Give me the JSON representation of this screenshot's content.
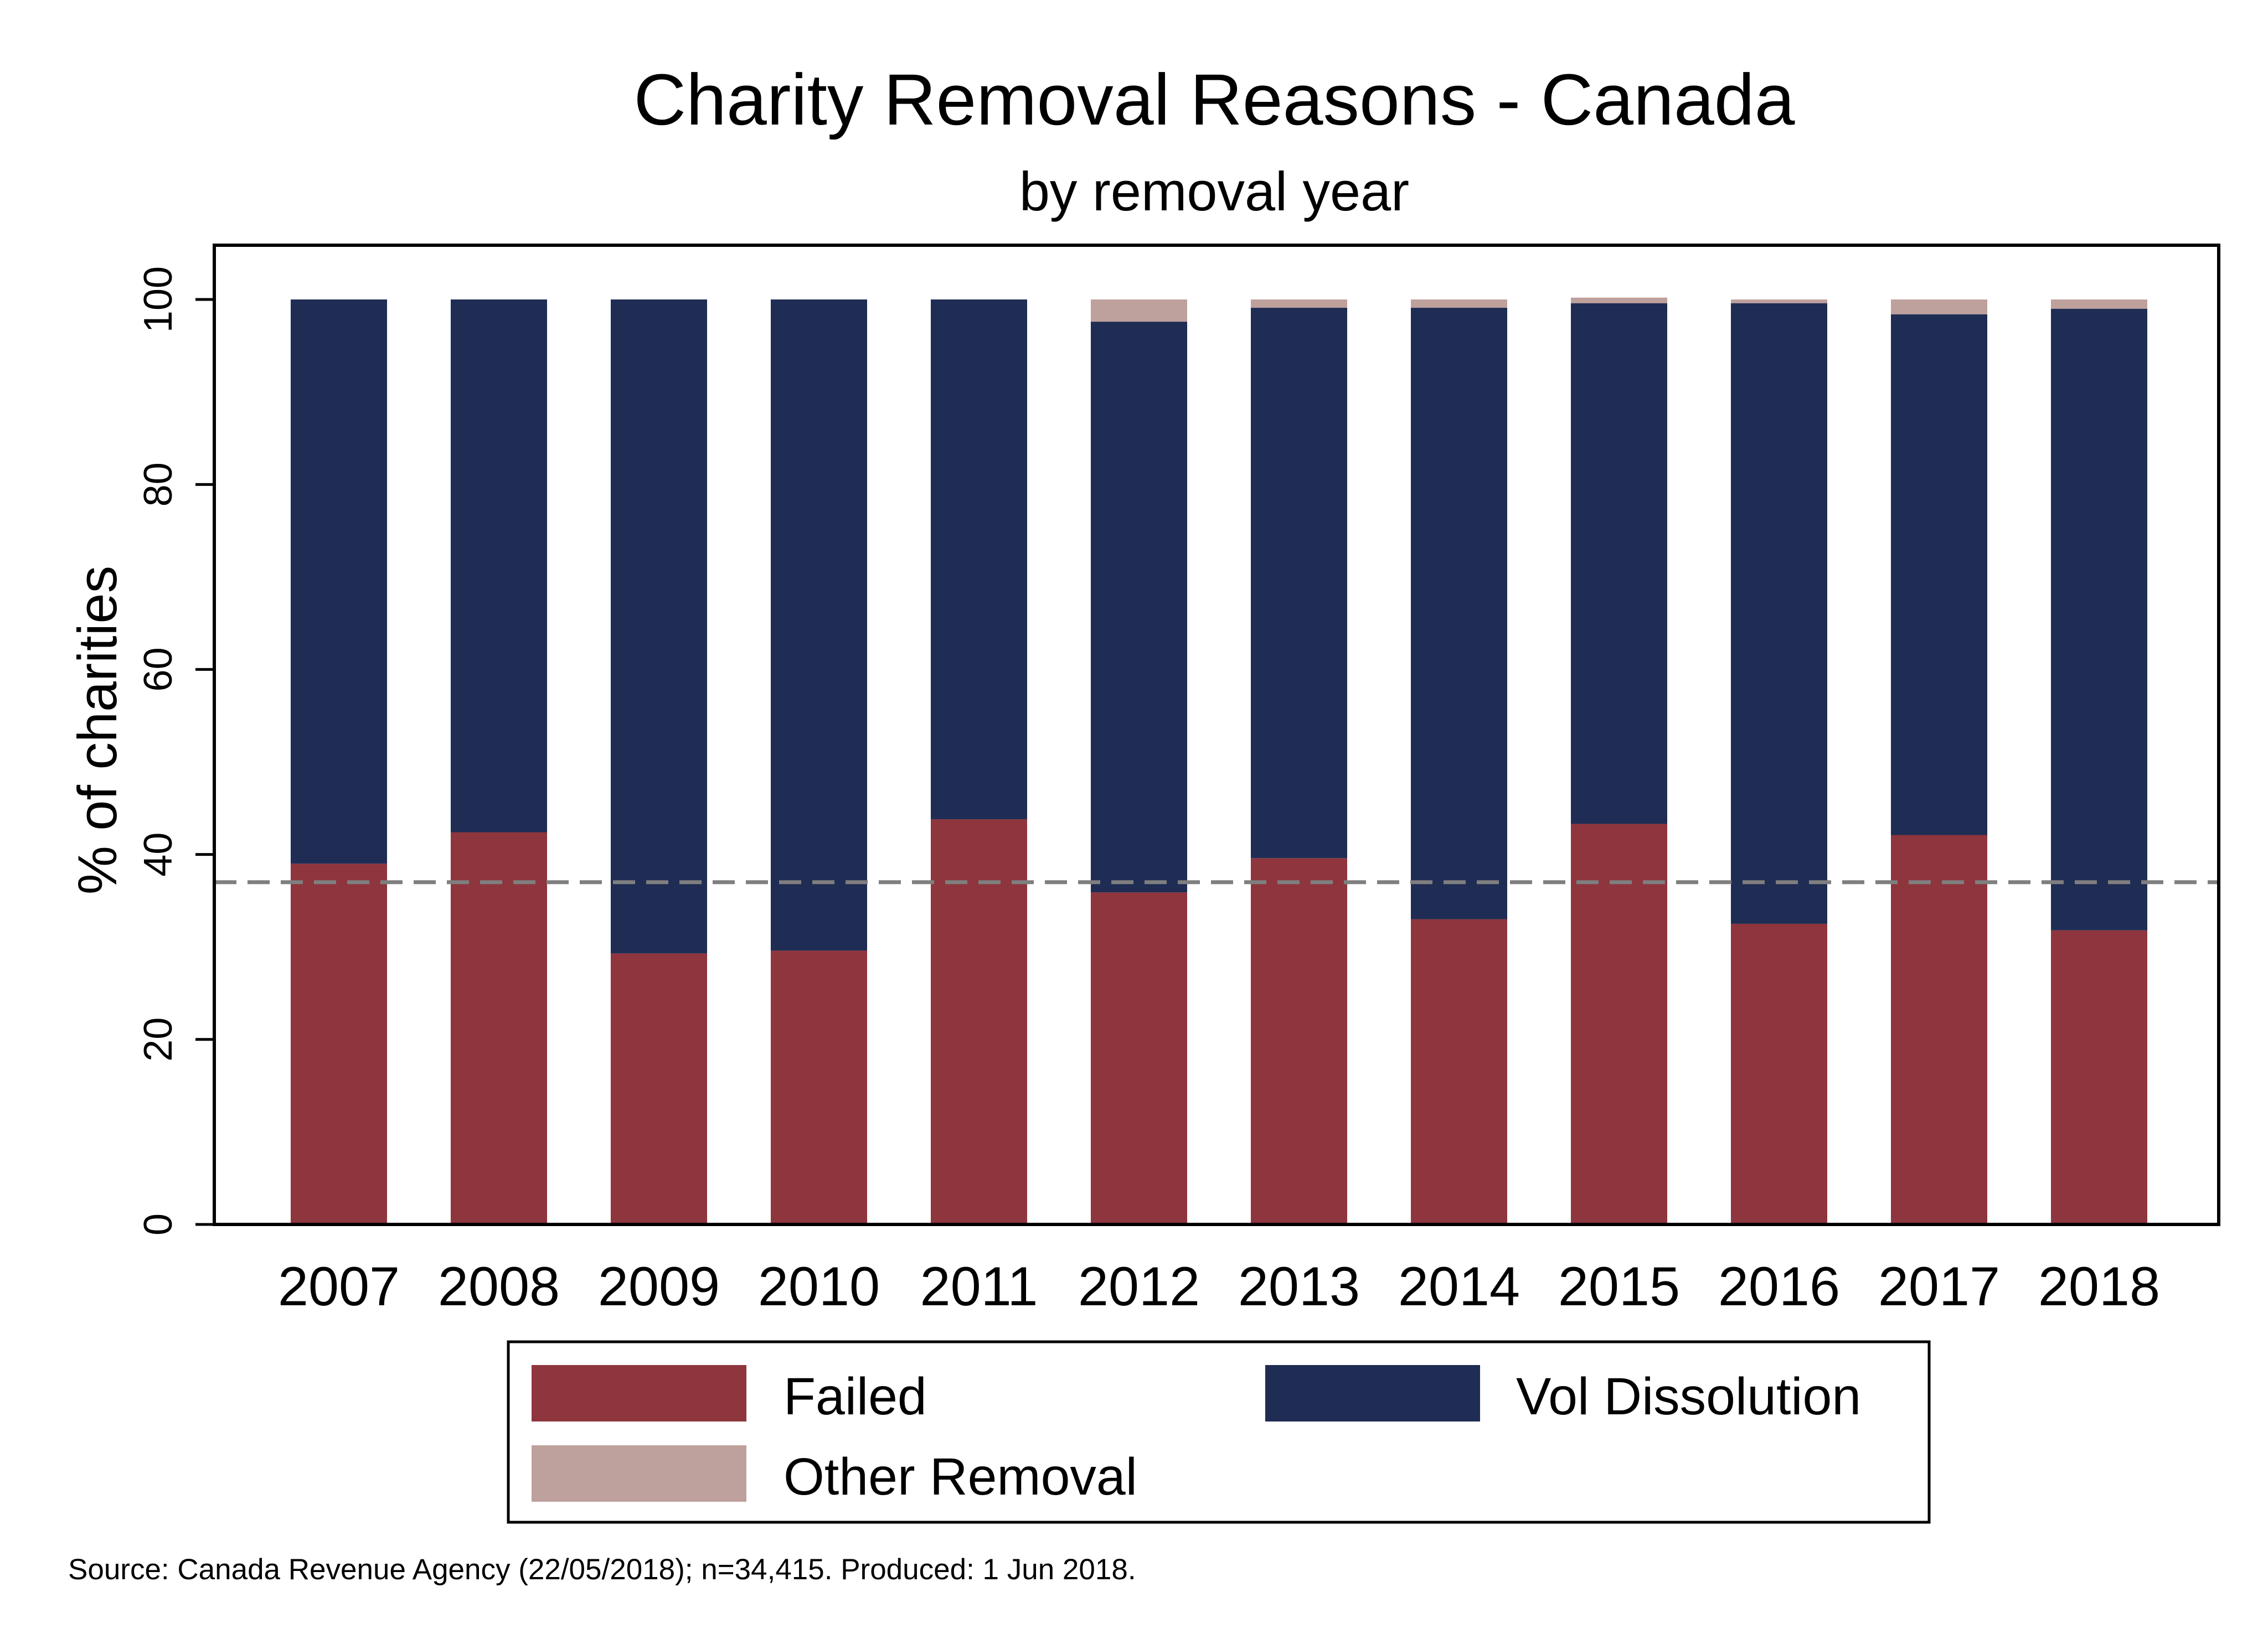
{
  "chart_data": {
    "type": "bar",
    "stacked": true,
    "title": "Charity Removal Reasons - Canada",
    "subtitle": "by removal year",
    "ylabel": "% of charities",
    "xlabel": "",
    "ylim": [
      0,
      100
    ],
    "yticks": [
      0,
      20,
      40,
      60,
      80,
      100
    ],
    "grid": false,
    "reference_line": {
      "y": 37,
      "style": "dashed"
    },
    "categories": [
      "2007",
      "2008",
      "2009",
      "2010",
      "2011",
      "2012",
      "2013",
      "2014",
      "2015",
      "2016",
      "2017",
      "2018"
    ],
    "series": [
      {
        "name": "Failed",
        "color": "#8e353d",
        "values": [
          39.0,
          42.4,
          29.3,
          29.6,
          43.8,
          35.9,
          39.6,
          33.0,
          43.3,
          32.5,
          42.1,
          31.8
        ]
      },
      {
        "name": "Vol Dissolution",
        "color": "#1f2d55",
        "values": [
          61.0,
          57.6,
          70.7,
          70.4,
          56.2,
          61.7,
          59.5,
          66.1,
          56.3,
          67.1,
          56.3,
          67.2
        ]
      },
      {
        "name": "Other Removal",
        "color": "#bea09c",
        "values": [
          0.0,
          0.0,
          0.0,
          0.0,
          0.0,
          2.4,
          0.9,
          0.9,
          0.6,
          0.4,
          1.6,
          1.0
        ]
      }
    ],
    "legend": {
      "position": "bottom",
      "columns": 2
    },
    "source_note": "Source: Canada Revenue Agency (22/05/2018);  n=34,415. Produced:  1 Jun 2018."
  }
}
